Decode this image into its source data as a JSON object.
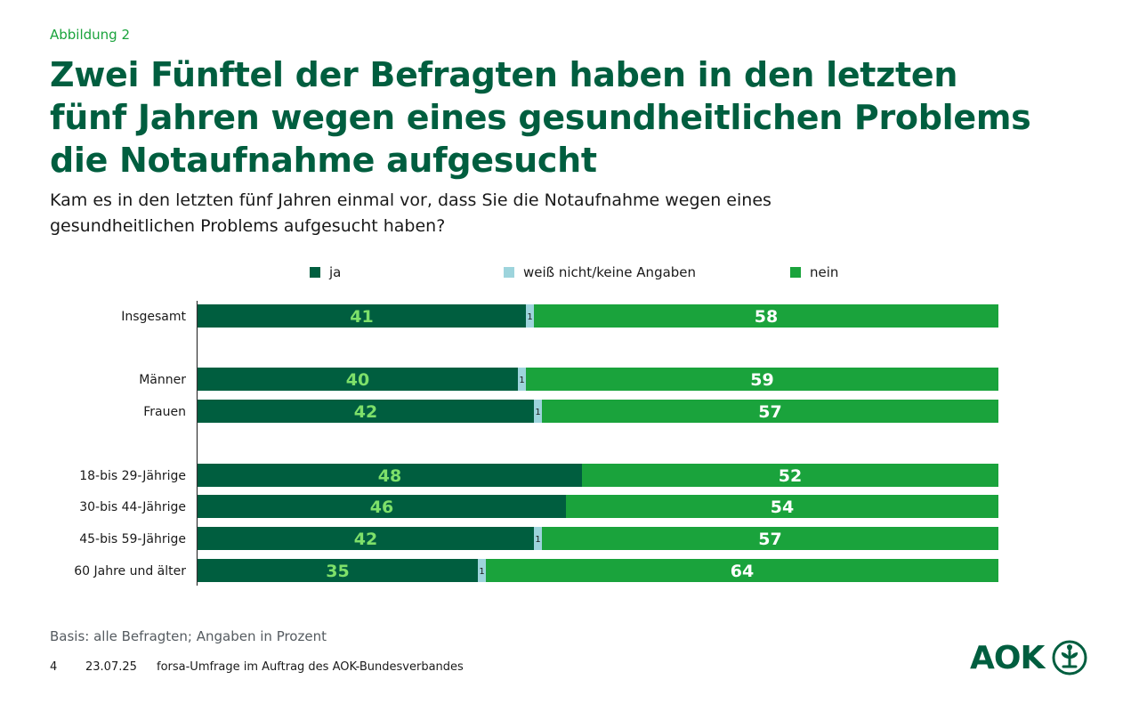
{
  "figure_label": "Abbildung 2",
  "headline": [
    "Zwei Fünftel der Befragten haben in den letzten",
    "fünf Jahren wegen eines gesundheitlichen Problems",
    "die Notaufnahme aufgesucht"
  ],
  "question": [
    "Kam es in den letzten fünf Jahren einmal vor, dass Sie die Notaufnahme wegen eines",
    "gesundheitlichen Problems aufgesucht haben?"
  ],
  "colors": {
    "ja": "#005e3f",
    "unknown": "#9dd4dc",
    "nein": "#1aa33c",
    "ja_label": "#7ee06a",
    "nein_label": "#ffffff",
    "axis": "#333333"
  },
  "chart_data": {
    "type": "bar",
    "orientation": "horizontal",
    "stacked": true,
    "xlim": [
      0,
      100
    ],
    "unit": "%",
    "legend_position": "top",
    "categories": [
      "Insgesamt",
      "Männer",
      "Frauen",
      "18-bis 29-Jährige",
      "30-bis 44-Jährige",
      "45-bis 59-Jährige",
      "60 Jahre und älter"
    ],
    "series": [
      {
        "key": "ja",
        "name": "ja",
        "values": [
          41,
          40,
          42,
          48,
          46,
          42,
          35
        ]
      },
      {
        "key": "unknown",
        "name": "weiß nicht/keine Angaben",
        "values": [
          1,
          1,
          1,
          0,
          0,
          1,
          1
        ]
      },
      {
        "key": "nein",
        "name": "nein",
        "values": [
          58,
          59,
          57,
          52,
          54,
          57,
          64
        ]
      }
    ]
  },
  "footnote": "Basis: alle Befragten; Angaben in Prozent",
  "footer": {
    "page_number": "4",
    "date": "23.07.25",
    "source": "forsa-Umfrage im Auftrag des AOK-Bundesverbandes"
  },
  "logo": {
    "text": "AOK",
    "icon": "aok-tree-icon"
  }
}
